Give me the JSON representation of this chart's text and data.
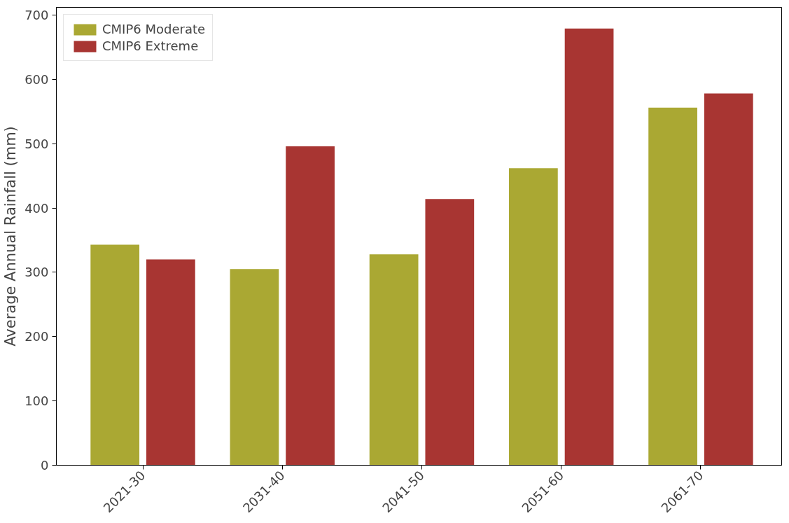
{
  "chart_data": {
    "type": "bar",
    "ylabel": "Average Annual Rainfall (mm)",
    "categories": [
      "2021-30",
      "2031-40",
      "2041-50",
      "2051-60",
      "2061-70"
    ],
    "series": [
      {
        "name": "CMIP6 Moderate",
        "color": "#aaa833",
        "values": [
          343,
          305,
          328,
          462,
          556
        ]
      },
      {
        "name": "CMIP6 Extreme",
        "color": "#a83532",
        "values": [
          320,
          496,
          414,
          679,
          578
        ]
      }
    ],
    "ylim": [
      0,
      712
    ],
    "yticks": [
      0,
      100,
      200,
      300,
      400,
      500,
      600,
      700
    ],
    "grid": false,
    "legend": "top left"
  }
}
